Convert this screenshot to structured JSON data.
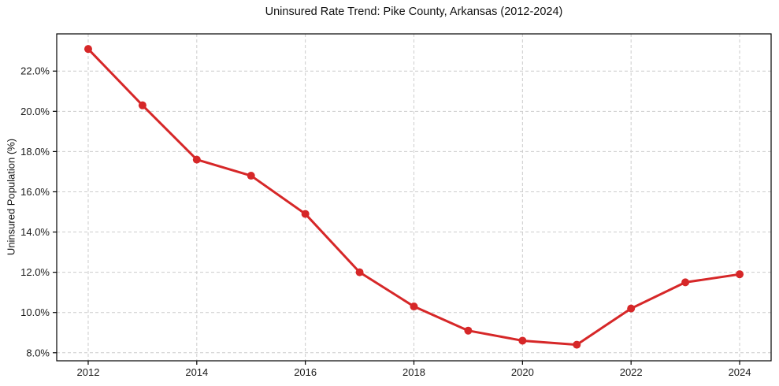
{
  "chart_data": {
    "type": "line",
    "title": "Uninsured Rate Trend: Pike County, Arkansas (2012-2024)",
    "xlabel": "",
    "ylabel": "Uninsured Population (%)",
    "x": [
      2012,
      2013,
      2014,
      2015,
      2016,
      2017,
      2018,
      2019,
      2020,
      2021,
      2022,
      2023,
      2024
    ],
    "values": [
      23.1,
      20.3,
      17.6,
      16.8,
      14.9,
      12.0,
      10.3,
      9.1,
      8.6,
      8.4,
      10.2,
      11.5,
      11.9
    ],
    "x_ticks": [
      2012,
      2014,
      2016,
      2018,
      2020,
      2022,
      2024
    ],
    "x_tick_labels": [
      "2012",
      "2014",
      "2016",
      "2018",
      "2020",
      "2022",
      "2024"
    ],
    "y_ticks": [
      8,
      10,
      12,
      14,
      16,
      18,
      20,
      22
    ],
    "y_tick_labels": [
      "8.0%",
      "10.0%",
      "12.0%",
      "14.0%",
      "16.0%",
      "18.0%",
      "20.0%",
      "22.0%"
    ],
    "xlim": [
      2011.42,
      2024.58
    ],
    "ylim": [
      7.6,
      23.85
    ],
    "grid": true,
    "grid_style": "dashed",
    "legend": false,
    "marker": "circle",
    "colors": {
      "line": "#d62728",
      "marker": "#d62728",
      "grid": "#cccccc",
      "spine": "#000000",
      "text": "#1a1a1a",
      "background": "#ffffff"
    }
  }
}
